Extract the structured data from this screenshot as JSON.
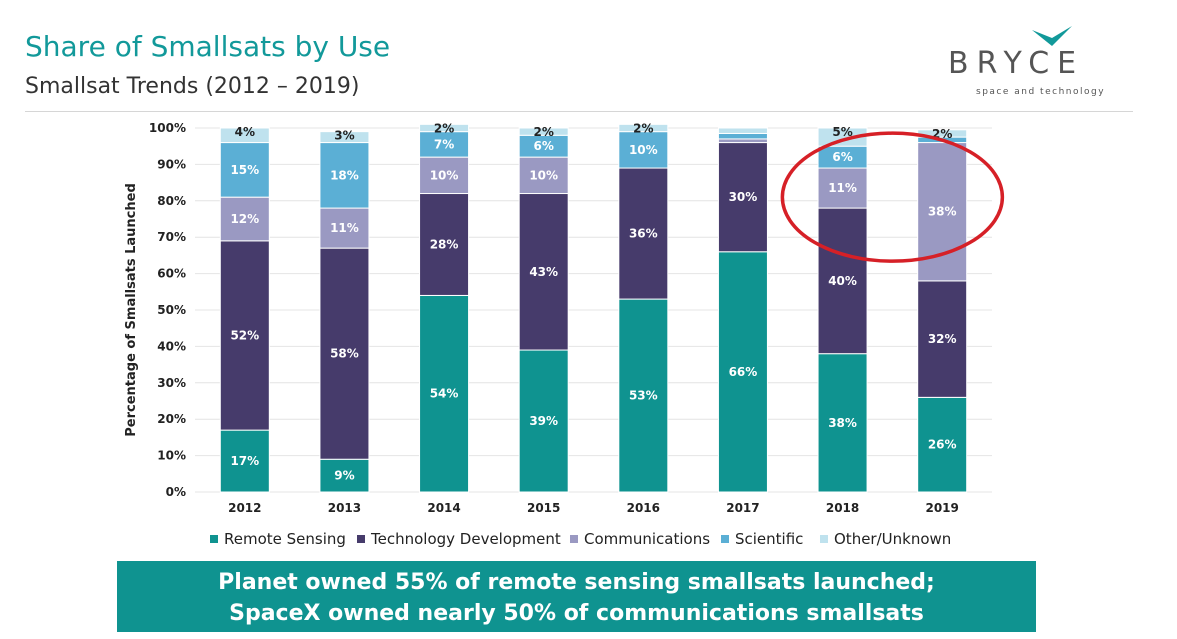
{
  "header": {
    "title": "Share of Smallsats by Use",
    "subtitle": "Smallsat Trends (2012 – 2019)"
  },
  "logo": {
    "word": "BRYCE",
    "tagline": "space and technology",
    "accent": "#12999a",
    "text_color": "#555555"
  },
  "chart_data": {
    "type": "bar",
    "stacked": true,
    "title": "",
    "xlabel": "",
    "ylabel": "Percentage of Smallsats Launched",
    "ylim": [
      0,
      100
    ],
    "yticks": [
      "0%",
      "10%",
      "20%",
      "30%",
      "40%",
      "50%",
      "60%",
      "70%",
      "80%",
      "90%",
      "100%"
    ],
    "grid": true,
    "legend_position": "bottom",
    "categories": [
      "2012",
      "2013",
      "2014",
      "2015",
      "2016",
      "2017",
      "2018",
      "2019"
    ],
    "series": [
      {
        "name": "Remote Sensing",
        "color": "#0f9390",
        "values": [
          17,
          9,
          54,
          39,
          53,
          66,
          38,
          26
        ],
        "labels": [
          "17%",
          "9%",
          "54%",
          "39%",
          "53%",
          "66%",
          "38%",
          "26%"
        ]
      },
      {
        "name": "Technology Development",
        "color": "#463b6b",
        "values": [
          52,
          58,
          28,
          43,
          36,
          30,
          40,
          32
        ],
        "labels": [
          "52%",
          "58%",
          "28%",
          "43%",
          "36%",
          "30%",
          "40%",
          "32%"
        ]
      },
      {
        "name": "Communications",
        "color": "#9a99c2",
        "values": [
          12,
          11,
          10,
          10,
          0,
          1,
          11,
          38
        ],
        "labels": [
          "12%",
          "11%",
          "10%",
          "10%",
          "",
          "",
          "11%",
          "38%"
        ]
      },
      {
        "name": "Scientific",
        "color": "#5bafd5",
        "values": [
          15,
          18,
          7,
          6,
          10,
          1.5,
          6,
          1.5
        ],
        "labels": [
          "15%",
          "18%",
          "7%",
          "6%",
          "10%",
          "",
          "6%",
          ""
        ]
      },
      {
        "name": "Other/Unknown",
        "color": "#bfe2ee",
        "values": [
          4,
          3,
          2,
          2,
          2,
          1.5,
          5,
          2
        ],
        "labels": [
          "4%",
          "3%",
          "2%",
          "2%",
          "2%",
          "",
          "5%",
          "2%"
        ]
      }
    ],
    "annotation": {
      "type": "ellipse",
      "color": "#d62027",
      "around": [
        "2018",
        "2019"
      ],
      "series": "Communications"
    }
  },
  "banner": {
    "line1": "Planet owned 55% of remote sensing smallsats launched;",
    "line2": "SpaceX owned nearly 50% of communications smallsats",
    "color": "#0f9390"
  }
}
